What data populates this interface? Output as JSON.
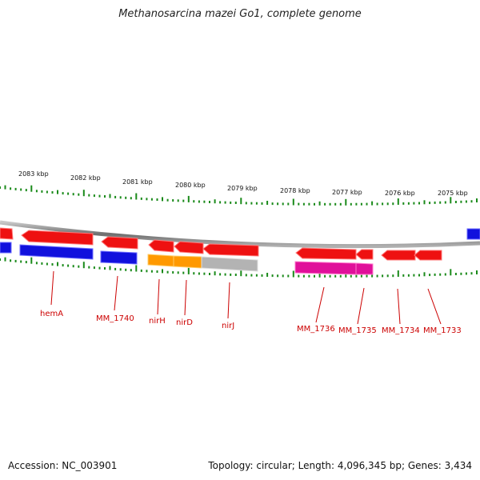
{
  "title": "Methanosarcina mazei Go1, complete genome",
  "accession_label": "Accession: NC_003901",
  "summary_label": "Topology: circular; Length: 4,096,345 bp; Genes: 3,434",
  "kbp_ticks": [
    "2083 kbp",
    "2082 kbp",
    "2081 kbp",
    "2080 kbp",
    "2079 kbp",
    "2078 kbp",
    "2077 kbp",
    "2076 kbp",
    "2075 kbp"
  ],
  "gene_labels": [
    "hemA",
    "MM_1740",
    "nirH",
    "nirD",
    "nirJ",
    "MM_1736",
    "MM_1735",
    "MM_1734",
    "MM_1733"
  ],
  "colors": {
    "gene_red": "#ee1111",
    "gene_blue": "#1111dd",
    "gene_orange": "#ff9900",
    "gene_gray": "#b3b3b3",
    "gene_magenta": "#e0109a",
    "backbone": "#8a8a8a",
    "tick_green": "#1a8a1a",
    "label_red": "#cc0000"
  }
}
